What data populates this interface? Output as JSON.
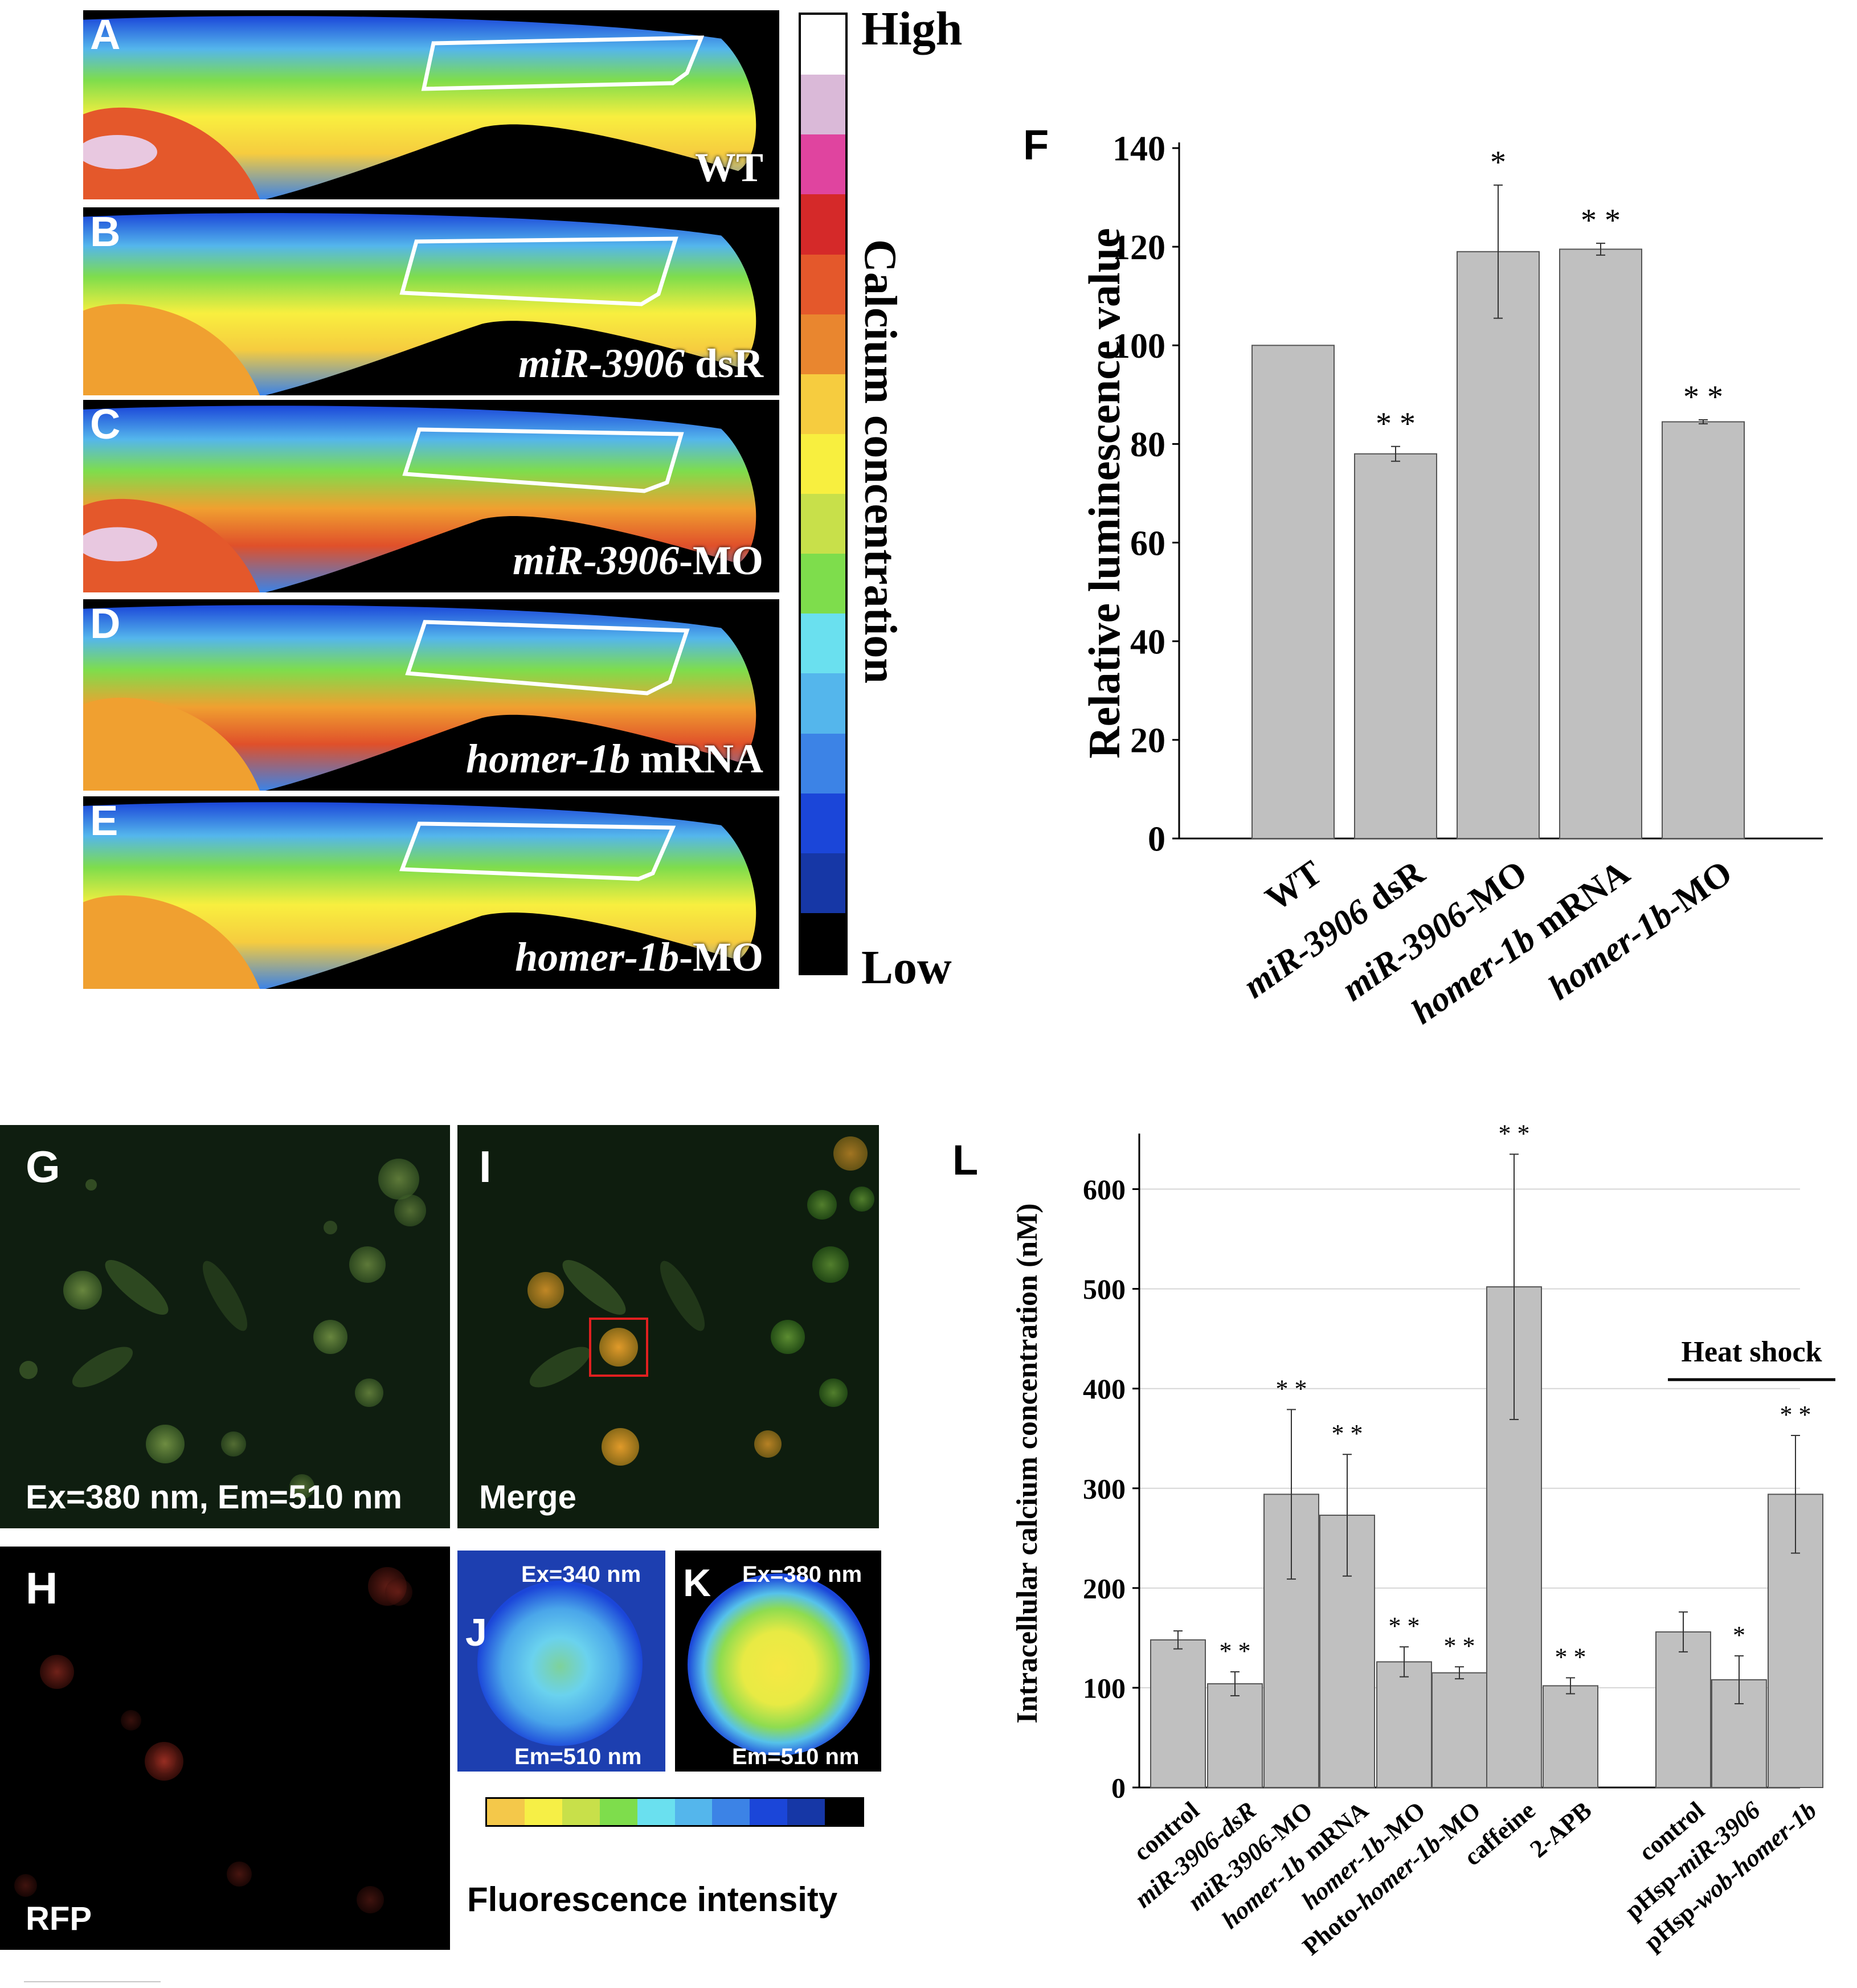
{
  "panel_a_e": {
    "panels": [
      {
        "letter": "A",
        "condition": "WT",
        "italic": "",
        "rest": "WT"
      },
      {
        "letter": "B",
        "condition": "miR-3906 dsR",
        "italic": "miR-3906",
        "rest": " dsR"
      },
      {
        "letter": "C",
        "condition": "miR-3906-MO",
        "italic": "miR-3906",
        "rest": "-MO"
      },
      {
        "letter": "D",
        "condition": "homer-1b mRNA",
        "italic": "homer-1b",
        "rest": " mRNA"
      },
      {
        "letter": "E",
        "condition": "homer-1b-MO",
        "italic": "homer-1b",
        "rest": "-MO"
      }
    ],
    "scale_high": "High",
    "scale_low": "Low",
    "scale_title": "Calcium concentration",
    "scale_colors": [
      "#ffffff",
      "#dab9d8",
      "#e0449f",
      "#d52929",
      "#e4582b",
      "#e9862f",
      "#f6cc3f",
      "#f8ef3f",
      "#c8e04a",
      "#7edd4c",
      "#6ae0ef",
      "#54b6ec",
      "#3c83e6",
      "#1b46d9",
      "#1637a6",
      "#000000"
    ]
  },
  "panel_f": {
    "letter": "F",
    "chart_data": {
      "type": "bar",
      "categories": [
        "WT",
        "miR-3906 dsR",
        "miR-3906-MO",
        "homer-1b mRNA",
        "homer-1b-MO"
      ],
      "values": [
        100,
        78,
        119,
        119.5,
        84.5
      ],
      "errors": [
        0,
        1.5,
        13.5,
        1.2,
        0.4
      ],
      "significance": [
        "",
        "* *",
        "*",
        "* *",
        "* *"
      ],
      "ylabel": "Relative luminescence value",
      "ylim": [
        0,
        140
      ],
      "yticks": [
        "0",
        "20",
        "40",
        "60",
        "80",
        "100",
        "120",
        "140"
      ],
      "bar_color": "#c0c0c0"
    }
  },
  "panel_g_k": {
    "g_letter": "G",
    "g_caption": "Ex=380 nm, Em=510 nm",
    "i_letter": "I",
    "i_caption": "Merge",
    "h_letter": "H",
    "h_caption": "RFP",
    "j_letter": "J",
    "j_ex": "Ex=340 nm",
    "j_em": "Em=510 nm",
    "k_letter": "K",
    "k_ex": "Ex=380 nm",
    "k_em": "Em=510 nm",
    "fluor_title": "Fluorescence intensity",
    "fluor_colors": [
      "#f4c84a",
      "#f6ef46",
      "#c8e04a",
      "#7edd4c",
      "#6ae0ef",
      "#54b6ec",
      "#3c83e6",
      "#1b46d9",
      "#1637a6",
      "#000000"
    ]
  },
  "panel_l": {
    "letter": "L",
    "heat_shock_label": "Heat shock",
    "chart_data": {
      "type": "bar",
      "categories": [
        "control",
        "miR-3906-dsR",
        "miR-3906-MO",
        "homer-1b mRNA",
        "homer-1b-MO",
        "Photo-homer-1b-MO",
        "caffeine",
        "2-APB",
        "control",
        "pHsp-miR-3906",
        "pHsp-wob-homer-1b"
      ],
      "values": [
        148,
        104,
        294,
        273,
        126,
        115,
        502,
        102,
        156,
        108,
        294
      ],
      "errors": [
        9,
        12,
        85,
        61,
        15,
        6,
        133,
        8,
        20,
        24,
        59
      ],
      "significance": [
        "",
        "* *",
        "* *",
        "* *",
        "* *",
        "* *",
        "* *",
        "* *",
        "",
        "*",
        "* *"
      ],
      "ylabel": "Intracellular calcium concentration (nM)",
      "ylim": [
        0,
        650
      ],
      "yticks": [
        "0",
        "100",
        "200",
        "300",
        "400",
        "500",
        "600"
      ],
      "bar_color": "#c0c0c0"
    }
  }
}
